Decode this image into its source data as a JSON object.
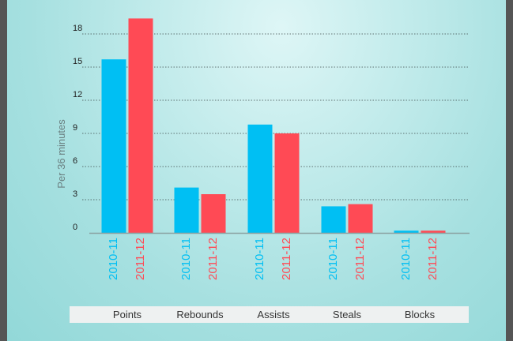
{
  "chart_data": {
    "type": "bar",
    "ylabel": "Per 36 minutes",
    "xlabel": "",
    "title": "",
    "ylim": [
      0,
      19.5
    ],
    "yticks": [
      0,
      3,
      6,
      9,
      12,
      15,
      18
    ],
    "grid": true,
    "categories": [
      "Points",
      "Rebounds",
      "Assists",
      "Steals",
      "Blocks"
    ],
    "series": [
      {
        "name": "2010-11",
        "color": "#00bff3",
        "values": [
          15.7,
          4.1,
          9.8,
          2.4,
          0.2
        ]
      },
      {
        "name": "2011-12",
        "color": "#ff4a55",
        "values": [
          19.4,
          3.5,
          9.0,
          2.6,
          0.2
        ]
      }
    ]
  }
}
